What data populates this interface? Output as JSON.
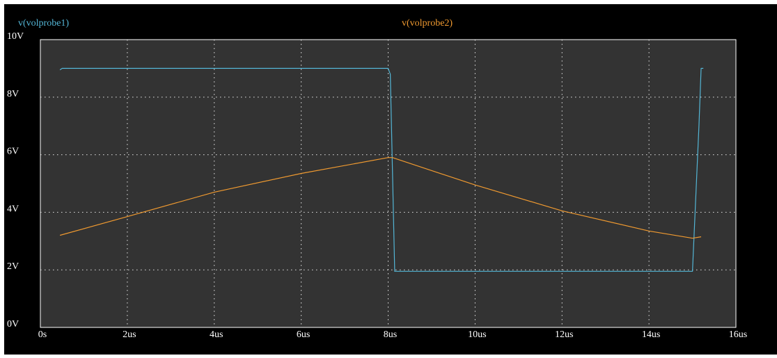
{
  "chart_data": {
    "type": "line",
    "xlabel": "",
    "ylabel": "",
    "xlim": [
      0,
      16
    ],
    "ylim": [
      0,
      10
    ],
    "x_ticks": [
      {
        "value": 0,
        "label": "0s"
      },
      {
        "value": 2,
        "label": "2us"
      },
      {
        "value": 4,
        "label": "4us"
      },
      {
        "value": 6,
        "label": "6us"
      },
      {
        "value": 8,
        "label": "8us"
      },
      {
        "value": 10,
        "label": "10us"
      },
      {
        "value": 12,
        "label": "12us"
      },
      {
        "value": 14,
        "label": "14us"
      },
      {
        "value": 16,
        "label": "16us"
      }
    ],
    "y_ticks": [
      {
        "value": 0,
        "label": "0V"
      },
      {
        "value": 2,
        "label": "2V"
      },
      {
        "value": 4,
        "label": "4V"
      },
      {
        "value": 6,
        "label": "6V"
      },
      {
        "value": 8,
        "label": "8V"
      },
      {
        "value": 10,
        "label": "10V"
      }
    ],
    "grid": true,
    "x_unit": "us",
    "y_unit": "V",
    "background": "#333333",
    "frame_color": "#000000",
    "grid_color": "#e6e6e6",
    "legend_position": "top",
    "series": [
      {
        "name": "v(volprobe1)",
        "color": "#54b6d6",
        "x": [
          0.45,
          0.5,
          8.0,
          8.05,
          8.15,
          15.0,
          15.15,
          15.2,
          15.25
        ],
        "y": [
          8.95,
          9.0,
          9.0,
          8.8,
          1.95,
          1.95,
          7.0,
          9.0,
          9.0
        ]
      },
      {
        "name": "v(volprobe2)",
        "color": "#f09a30",
        "x": [
          0.45,
          2.0,
          4.0,
          6.0,
          8.0,
          8.1,
          10.0,
          12.0,
          14.0,
          15.0,
          15.2
        ],
        "y": [
          3.2,
          3.85,
          4.7,
          5.35,
          5.9,
          5.9,
          4.95,
          4.05,
          3.35,
          3.1,
          3.15
        ]
      }
    ]
  }
}
